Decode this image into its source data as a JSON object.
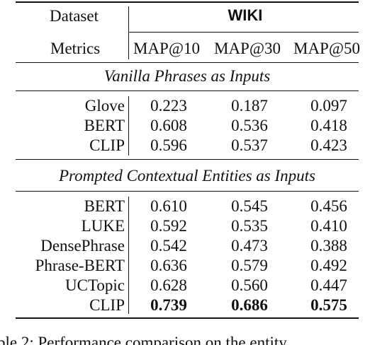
{
  "header": {
    "dataset_label": "Dataset",
    "dataset_name": "WIKI",
    "metrics_label": "Metrics",
    "metrics": [
      "MAP@10",
      "MAP@30",
      "MAP@50"
    ]
  },
  "sections": [
    {
      "title": "Vanilla Phrases as Inputs",
      "rows": [
        {
          "model": "Glove",
          "values": [
            "0.223",
            "0.187",
            "0.097"
          ]
        },
        {
          "model": "BERT",
          "values": [
            "0.608",
            "0.536",
            "0.418"
          ]
        },
        {
          "model": "CLIP",
          "values": [
            "0.596",
            "0.537",
            "0.423"
          ]
        }
      ]
    },
    {
      "title": "Prompted Contextual Entities as Inputs",
      "rows": [
        {
          "model": "BERT",
          "values": [
            "0.610",
            "0.545",
            "0.456"
          ]
        },
        {
          "model": "LUKE",
          "values": [
            "0.592",
            "0.535",
            "0.410"
          ]
        },
        {
          "model": "DensePhrase",
          "values": [
            "0.542",
            "0.473",
            "0.388"
          ]
        },
        {
          "model": "Phrase-BERT",
          "values": [
            "0.636",
            "0.579",
            "0.492"
          ]
        },
        {
          "model": "UCTopic",
          "values": [
            "0.628",
            "0.560",
            "0.447"
          ]
        },
        {
          "model": "CLIP",
          "values": [
            "0.739",
            "0.686",
            "0.575"
          ]
        }
      ]
    }
  ],
  "caption": "ble 2: Performance comparison on the entity"
}
